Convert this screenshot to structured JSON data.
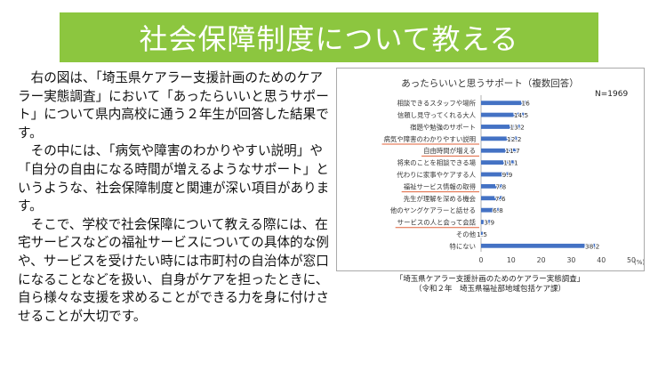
{
  "banner": {
    "title": "社会保障制度について教える"
  },
  "body": {
    "paragraphs": [
      "右の図は、「埼玉県ケアラー支援計画のためのケアラー実態調査」において「あったらいいと思うサポート」について県内高校に通う２年生が回答した結果です。",
      "その中には、「病気や障害のわかりやすい説明」や「自分の自由になる時間が増えるようなサポート」というような、社会保障制度と関連が深い項目があります。",
      "そこで、学校で社会保障について教える際には、在宅サービスなどの福祉サービスについての具体的な例や、サービスを受けたい時には市町村の自治体が窓口になることなどを扱い、自身がケアを担ったときに、自ら様々な支援を求めることができる力を身に付けさせることが大切です。"
    ]
  },
  "chart_data": {
    "type": "bar",
    "orientation": "horizontal",
    "title": "あったらいいと思うサポート（複数回答）",
    "n_label": "N=1969",
    "unit": "(%)",
    "xlim": [
      0,
      50
    ],
    "xticks": [
      "0",
      "10",
      "20",
      "30",
      "40",
      "50"
    ],
    "categories": [
      "相談できるスタッフや場所",
      "信頼し見守ってくれる大人",
      "宿題や勉強のサポート",
      "病気や障害のわかりやすい説明",
      "自由時間が増える",
      "将来のことを相談できる場",
      "代わりに家事やケアする人",
      "福祉サービス情報の取得",
      "先生が理解を深める機会",
      "他のヤングケアラーと話せる",
      "サービスの人と会って会話",
      "その他",
      "特にない"
    ],
    "values": [
      16,
      14.5,
      13.2,
      12.2,
      11.7,
      11.1,
      9.9,
      7.8,
      7.6,
      6.8,
      3.9,
      1.5,
      38.2
    ],
    "value_labels": [
      "16",
      "14.5",
      "13.2",
      "12.2",
      "11.7",
      "11.1",
      "9.9",
      "7.8",
      "7.6",
      "6.8",
      "3.9",
      "1.5",
      "38.2"
    ],
    "underlined": [
      3,
      4,
      7,
      10
    ],
    "bar_color": "#4472c4",
    "underline_color": "#e0623a"
  },
  "source": {
    "line1": "「埼玉県ケアラー支援計画のためのケアラー実態調査」",
    "line2": "（令和２年　埼玉県福祉部地域包括ケア課）"
  }
}
